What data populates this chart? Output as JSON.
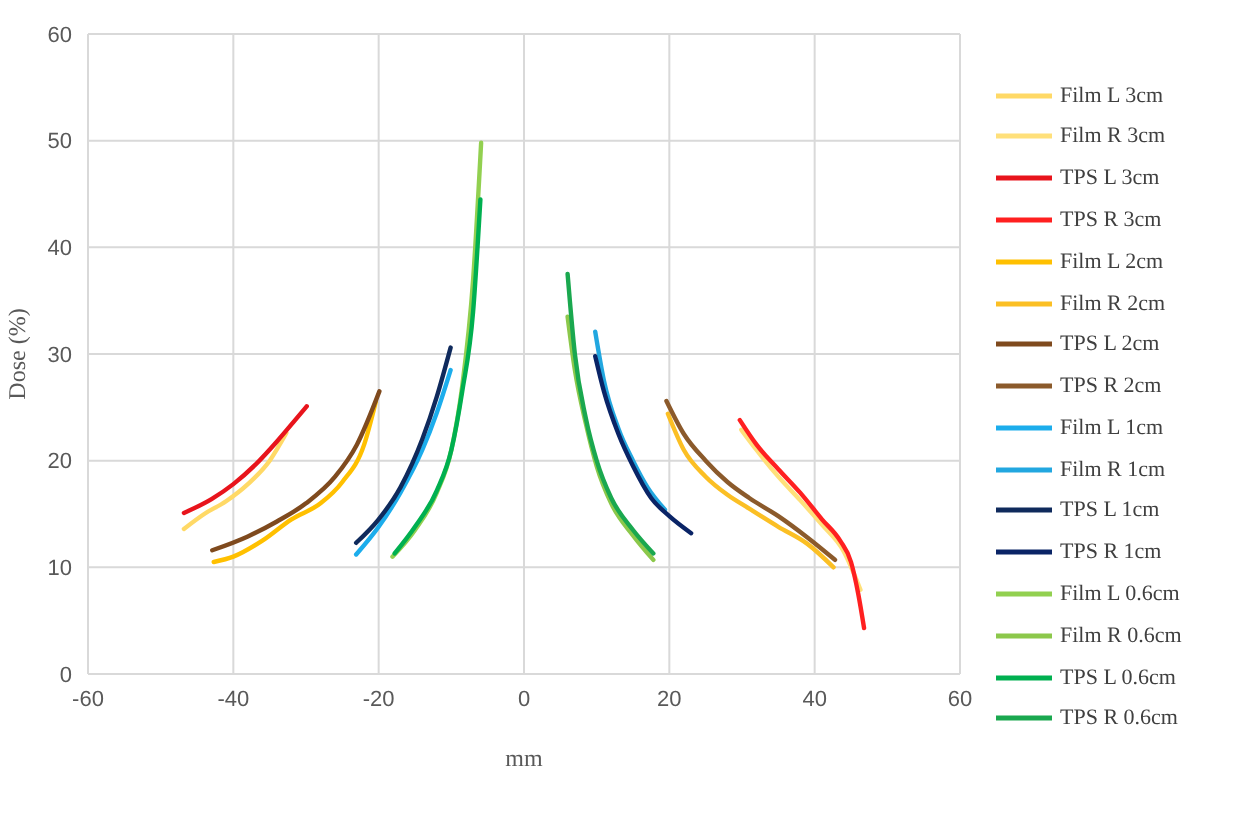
{
  "chart_data": {
    "type": "line",
    "xlabel": "mm",
    "ylabel": "Dose (%)",
    "xlim": [
      -60,
      60
    ],
    "xticks": [
      -60,
      -40,
      -20,
      0,
      20,
      40,
      60
    ],
    "ylim": [
      0,
      60
    ],
    "yticks": [
      0,
      10,
      20,
      30,
      40,
      50,
      60
    ],
    "grid": true,
    "legend": "right",
    "marker": "none",
    "line_style": "solid",
    "series": [
      {
        "name": "Film L 3cm",
        "color": "#ffd966",
        "x": [
          -46.8,
          -44,
          -41,
          -38,
          -35,
          -32.7
        ],
        "values": [
          13.6,
          15,
          16.2,
          17.8,
          20,
          22.6
        ]
      },
      {
        "name": "Film R 3cm",
        "color": "#ffe07a",
        "x": [
          29.9,
          32,
          35,
          38,
          41,
          44,
          46.3
        ],
        "values": [
          22.9,
          21,
          18.5,
          16.3,
          14,
          11.5,
          7.9
        ]
      },
      {
        "name": "TPS L 3cm",
        "color": "#e8141c",
        "x": [
          -46.8,
          -43,
          -40,
          -37,
          -34,
          -31.5,
          -29.9
        ],
        "values": [
          15.1,
          16.4,
          17.8,
          19.6,
          21.8,
          23.8,
          25.1
        ]
      },
      {
        "name": "TPS R 3cm",
        "color": "#ff2020",
        "x": [
          29.7,
          32,
          35,
          38,
          41,
          43.5,
          45,
          46,
          46.8
        ],
        "values": [
          23.8,
          21.5,
          19.2,
          17,
          14.5,
          12.5,
          10.5,
          7.5,
          4.3
        ]
      },
      {
        "name": "Film L 2cm",
        "color": "#ffc000",
        "x": [
          -42.7,
          -40,
          -36,
          -32,
          -28,
          -25,
          -22,
          -20.4
        ],
        "values": [
          10.5,
          11,
          12.5,
          14.5,
          16,
          18,
          21.5,
          25.5
        ]
      },
      {
        "name": "Film R 2cm",
        "color": "#fbbf24",
        "x": [
          19.8,
          22,
          25,
          28,
          31,
          35,
          39,
          42.6
        ],
        "values": [
          24.4,
          21,
          18.5,
          16.8,
          15.5,
          13.8,
          12.2,
          10
        ]
      },
      {
        "name": "TPS L 2cm",
        "color": "#7f4a1e",
        "x": [
          -42.9,
          -38,
          -34,
          -30,
          -26,
          -23,
          -19.9
        ],
        "values": [
          11.6,
          12.9,
          14.3,
          16,
          18.5,
          21.5,
          26.5
        ]
      },
      {
        "name": "TPS R 2cm",
        "color": "#8b5a2b",
        "x": [
          19.6,
          22,
          25,
          28,
          31,
          35,
          39,
          42.8
        ],
        "values": [
          25.6,
          22.5,
          20,
          18,
          16.5,
          14.8,
          12.8,
          10.7
        ]
      },
      {
        "name": "Film L 1cm",
        "color": "#1cadec",
        "x": [
          -23.1,
          -20,
          -17,
          -14,
          -12,
          -10.1
        ],
        "values": [
          11.2,
          13.8,
          17,
          21,
          24.5,
          28.5
        ]
      },
      {
        "name": "Film R 1cm",
        "color": "#22a7e0",
        "x": [
          9.8,
          11,
          13,
          15,
          17,
          19.4
        ],
        "values": [
          32.1,
          27.5,
          23,
          20,
          17.5,
          15.4
        ]
      },
      {
        "name": "TPS L 1cm",
        "color": "#0f2a5c",
        "x": [
          -23.1,
          -20,
          -17,
          -14,
          -12,
          -10.1
        ],
        "values": [
          12.3,
          14.5,
          17.5,
          22,
          26,
          30.6
        ]
      },
      {
        "name": "TPS R 1cm",
        "color": "#0a2466",
        "x": [
          9.8,
          11,
          13,
          15,
          17.5,
          20,
          23
        ],
        "values": [
          29.8,
          26.5,
          22.5,
          19.5,
          16.5,
          14.8,
          13.2
        ]
      },
      {
        "name": "Film L 0.6cm",
        "color": "#92d050",
        "x": [
          -18.1,
          -15,
          -12,
          -10,
          -8.5,
          -7,
          -5.9
        ],
        "values": [
          11,
          13.5,
          17,
          21,
          27,
          37,
          49.8
        ]
      },
      {
        "name": "Film R 0.6cm",
        "color": "#8cc84b",
        "x": [
          6,
          7,
          8.5,
          10,
          12,
          15,
          17.8
        ],
        "values": [
          33.5,
          28.5,
          23.5,
          19.5,
          16,
          13,
          10.7
        ]
      },
      {
        "name": "TPS L 0.6cm",
        "color": "#00b050",
        "x": [
          -17.8,
          -15,
          -12,
          -10,
          -8.5,
          -7,
          -6
        ],
        "values": [
          11.3,
          13.8,
          17.2,
          21,
          26.5,
          34,
          44.5
        ]
      },
      {
        "name": "TPS R 0.6cm",
        "color": "#1aa84f",
        "x": [
          6,
          7,
          8.5,
          10,
          12,
          15,
          17.8
        ],
        "values": [
          37.5,
          30,
          24,
          20,
          16.5,
          13.5,
          11.3
        ]
      }
    ]
  }
}
